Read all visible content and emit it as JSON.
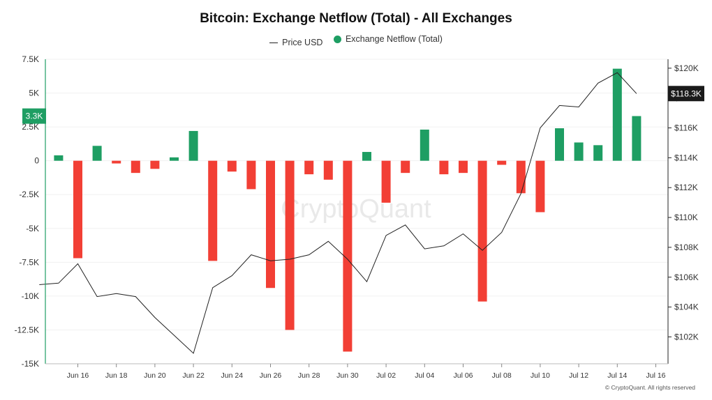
{
  "chart_data": {
    "type": "bar",
    "title": "Bitcoin: Exchange Netflow (Total) - All Exchanges",
    "xlabel": "",
    "ylabel": "",
    "legend_placement": "top-center",
    "grid": true,
    "watermark": "CryptoQuant",
    "footer": "© CryptoQuant. All rights reserved",
    "left_axis": {
      "ylim": [
        -15000,
        7500
      ],
      "ticks": [
        7500,
        5000,
        2500,
        0,
        -2500,
        -5000,
        -7500,
        -10000,
        -12500,
        -15000
      ],
      "tick_labels": [
        "7.5K",
        "5K",
        "2.5K",
        "0",
        "-2.5K",
        "-5K",
        "-7.5K",
        "-10K",
        "-12.5K",
        "-15K"
      ],
      "current_label": "3.3K",
      "current_value": 3300
    },
    "right_axis": {
      "ylim": [
        100200,
        120600
      ],
      "ticks": [
        120000,
        118000,
        116000,
        114000,
        112000,
        110000,
        108000,
        106000,
        104000,
        102000
      ],
      "tick_labels": [
        "$120K",
        "$118K",
        "$116K",
        "$114K",
        "$112K",
        "$110K",
        "$108K",
        "$106K",
        "$104K",
        "$102K"
      ],
      "current_label": "$118.3K",
      "current_value": 118300
    },
    "x_tick_labels": [
      "Jun 16",
      "Jun 18",
      "Jun 20",
      "Jun 22",
      "Jun 24",
      "Jun 26",
      "Jun 28",
      "Jun 30",
      "Jul 02",
      "Jul 04",
      "Jul 06",
      "Jul 08",
      "Jul 10",
      "Jul 12",
      "Jul 14",
      "Jul 16"
    ],
    "x": [
      "Jun 14",
      "Jun 15",
      "Jun 16",
      "Jun 17",
      "Jun 18",
      "Jun 19",
      "Jun 20",
      "Jun 21",
      "Jun 22",
      "Jun 23",
      "Jun 24",
      "Jun 25",
      "Jun 26",
      "Jun 27",
      "Jun 28",
      "Jun 29",
      "Jun 30",
      "Jul 01",
      "Jul 02",
      "Jul 03",
      "Jul 04",
      "Jul 05",
      "Jul 06",
      "Jul 07",
      "Jul 08",
      "Jul 09",
      "Jul 10",
      "Jul 11",
      "Jul 12",
      "Jul 13",
      "Jul 14",
      "Jul 15"
    ],
    "series": [
      {
        "name": "Price USD",
        "type": "line",
        "axis": "right",
        "color": "#222222",
        "values": [
          105500,
          105600,
          106900,
          104700,
          104900,
          104700,
          103300,
          102100,
          100900,
          105300,
          106100,
          107500,
          107100,
          107200,
          107500,
          108400,
          107200,
          105700,
          108800,
          109500,
          107900,
          108100,
          108900,
          107800,
          109000,
          111600,
          116000,
          117500,
          117400,
          119000,
          119700,
          118300
        ]
      },
      {
        "name": "Exchange Netflow (Total)",
        "type": "bar",
        "axis": "left",
        "positive_color": "#1e9e63",
        "negative_color": "#f23f35",
        "values": [
          null,
          400,
          -7200,
          1100,
          -200,
          -900,
          -600,
          250,
          2200,
          -7400,
          -800,
          -2100,
          -9400,
          -12500,
          -1000,
          -1400,
          -14100,
          650,
          -3100,
          -900,
          2300,
          -1000,
          -900,
          -10400,
          -300,
          -2400,
          -3800,
          2400,
          1350,
          1150,
          6800,
          3300
        ]
      }
    ]
  }
}
